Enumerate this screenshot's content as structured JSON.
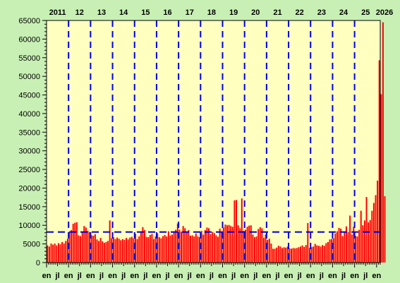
{
  "chart_data": {
    "type": "bar",
    "title": "",
    "xlabel": "",
    "ylabel": "",
    "ylim": [
      0,
      65000
    ],
    "y_ticks": [
      "0",
      "5000",
      "10000",
      "15000",
      "20000",
      "25000",
      "30000",
      "35000",
      "40000",
      "45000",
      "50000",
      "55000",
      "60000",
      "65000"
    ],
    "y_tick_values": [
      0,
      5000,
      10000,
      15000,
      20000,
      25000,
      30000,
      35000,
      40000,
      45000,
      50000,
      55000,
      60000,
      65000
    ],
    "x_start": "2011-01",
    "x_end": "2026-02",
    "year_labels": [
      "2011",
      "12",
      "13",
      "14",
      "15",
      "16",
      "17",
      "18",
      "19",
      "20",
      "21",
      "22",
      "23",
      "24",
      "25",
      "2026"
    ],
    "month_labels": [
      "en",
      "jl",
      "en",
      "jl",
      "en",
      "jl",
      "en",
      "jl",
      "en",
      "jl",
      "en",
      "jl",
      "en",
      "jl",
      "en",
      "jl",
      "en",
      "jl",
      "en",
      "jl",
      "en",
      "jl",
      "en",
      "jl",
      "en",
      "jl",
      "en",
      "jl",
      "en",
      "jl",
      "en"
    ],
    "reference_line": 8200,
    "grid": false,
    "colors": {
      "plot_bg": "#ffffc0",
      "page_bg": "#c8f0b4",
      "bar": "#ff0000",
      "year_divider": "#0000dd",
      "reference_line": "#0000dd"
    },
    "series": [
      {
        "values": [
          4600,
          4300,
          5100,
          4800,
          5100,
          4600,
          5200,
          4900,
          5500,
          5100,
          5800,
          6400,
          8300,
          8700,
          10400,
          10700,
          10800,
          7300,
          7100,
          8100,
          9800,
          9400,
          8500,
          8200,
          7300,
          7200,
          7600,
          6200,
          5800,
          6600,
          5700,
          5300,
          5500,
          5800,
          11300,
          6500,
          6800,
          6300,
          6700,
          6400,
          6000,
          6300,
          6100,
          6600,
          6200,
          6700,
          6900,
          6500,
          7700,
          6300,
          7000,
          8400,
          9500,
          8700,
          6900,
          6800,
          7400,
          7700,
          6300,
          7000,
          7800,
          6800,
          6500,
          7100,
          7400,
          7000,
          8400,
          7300,
          7500,
          8400,
          8800,
          10500,
          8800,
          8300,
          9800,
          9200,
          8200,
          8700,
          7200,
          7300,
          7000,
          7800,
          7000,
          6800,
          8500,
          7500,
          8700,
          9400,
          9200,
          7700,
          8200,
          7900,
          7300,
          6900,
          9100,
          8200,
          9400,
          10200,
          10000,
          10100,
          9800,
          9600,
          16700,
          16800,
          10000,
          9200,
          17200,
          8500,
          8800,
          9600,
          9900,
          10000,
          7500,
          6800,
          7000,
          9000,
          9500,
          9200,
          6600,
          7500,
          6100,
          6400,
          5100,
          3700,
          3700,
          4000,
          4500,
          4300,
          3900,
          4100,
          4000,
          4300,
          3800,
          3700,
          3900,
          3800,
          3900,
          4100,
          4300,
          4600,
          4200,
          4700,
          10600,
          3900,
          4100,
          4300,
          5000,
          4600,
          4500,
          4300,
          4700,
          4500,
          5200,
          5500,
          6200,
          6300,
          6500,
          7800,
          8400,
          9300,
          9100,
          7100,
          8300,
          9700,
          8200,
          12600,
          7500,
          9600,
          7200,
          7000,
          8800,
          13900,
          10000,
          11300,
          17600,
          10800,
          11400,
          13900,
          16000,
          18100,
          22000,
          54300,
          45200,
          64500,
          17800
        ]
      }
    ]
  }
}
